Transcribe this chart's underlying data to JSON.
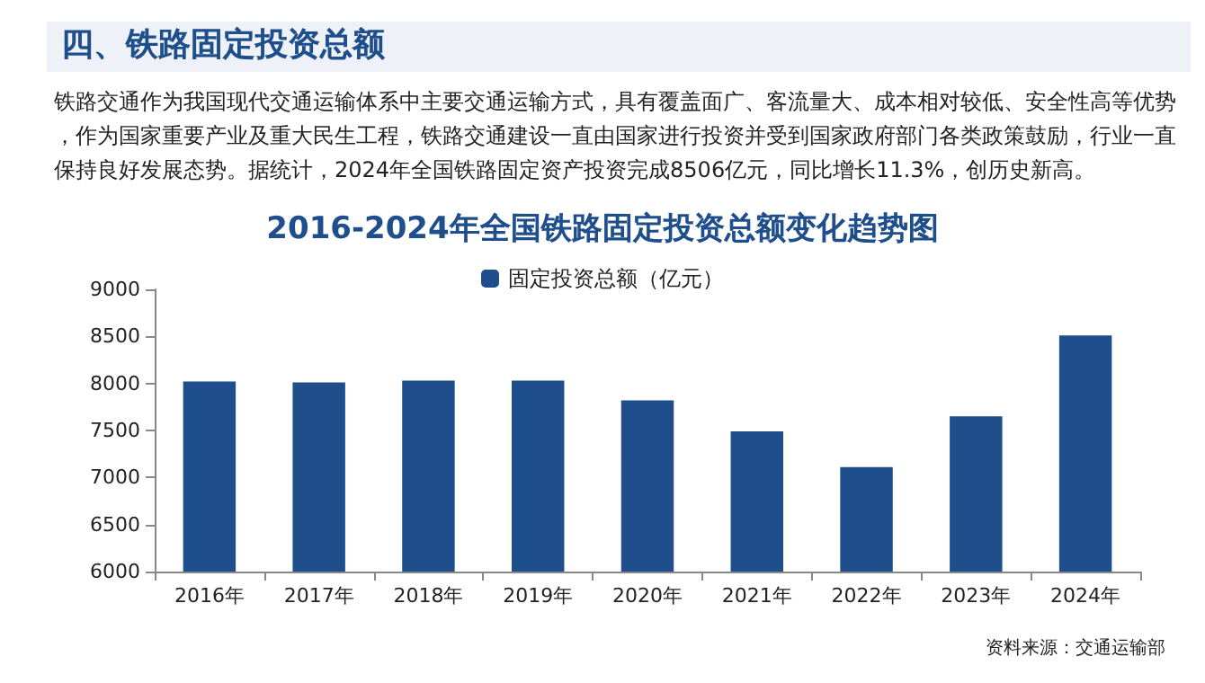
{
  "chart_data": {
    "type": "bar",
    "title": "2016-2024年全国铁路固定投资总额变化趋势图",
    "annotations": [
      "四、铁路固定投资总额",
      "铁路交通作为我国现代交通运输体系中主要交通运输方式，具有覆盖面广、客流量大、成本相对较低、安全性高等优势，作为国家重要产业及重大民生工程，铁路交通建设一直由国家进行投资并受到国家政府部门各类政策鼓励，行业一直保持良好发展态势。据统计，2024年全国铁路固定资产投资完成8506亿元，同比增长11.3%，创历史新高。",
      "资料来源：交通运输部"
    ],
    "categories": [
      "2016年",
      "2017年",
      "2018年",
      "2019年",
      "2020年",
      "2021年",
      "2022年",
      "2023年",
      "2024年"
    ],
    "series": [
      {
        "name": "固定投资总额（亿元）",
        "color": "#1f4e8c",
        "values": [
          8020,
          8010,
          8030,
          8030,
          7820,
          7490,
          7110,
          7650,
          8510
        ]
      }
    ],
    "ylim": [
      6000,
      9000
    ],
    "yticks": [
      6000,
      6500,
      7000,
      7500,
      8000,
      8500,
      9000
    ],
    "grid": false,
    "legend": "top"
  }
}
